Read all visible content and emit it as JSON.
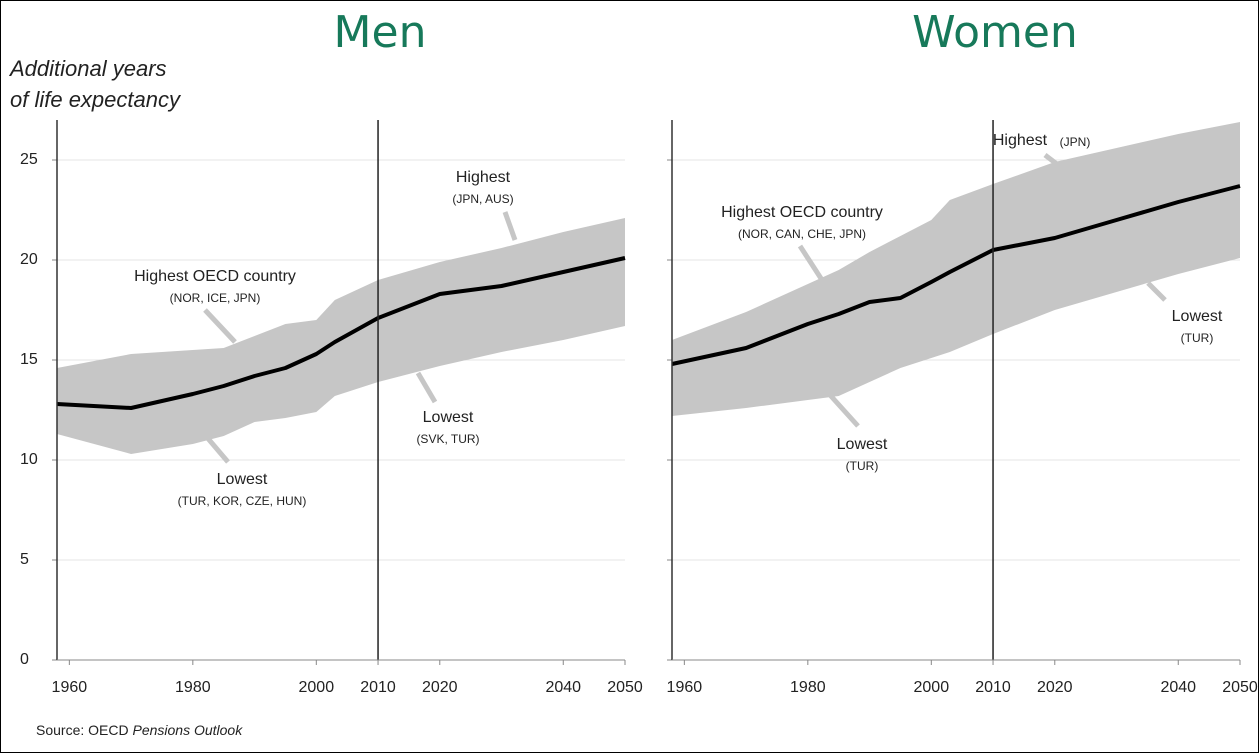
{
  "chart_data": [
    {
      "type": "band_line",
      "title": "Men",
      "y_label": [
        "Additional years",
        "of life expectancy"
      ],
      "x": [
        1958,
        1970,
        1980,
        1985,
        1990,
        1995,
        2000,
        2003,
        2010,
        2020,
        2030,
        2040,
        2050
      ],
      "mean": [
        12.8,
        12.6,
        13.3,
        13.7,
        14.2,
        14.6,
        15.3,
        15.9,
        17.1,
        18.3,
        18.7,
        19.4,
        20.1
      ],
      "high": [
        14.6,
        15.3,
        15.5,
        15.6,
        16.2,
        16.8,
        17.0,
        18.0,
        19.0,
        19.9,
        20.6,
        21.4,
        22.1
      ],
      "low": [
        11.3,
        10.3,
        10.8,
        11.2,
        11.9,
        12.1,
        12.4,
        13.2,
        13.9,
        14.7,
        15.4,
        16.0,
        16.7
      ],
      "band_color": "#c6c6c6",
      "line_color": "#000000",
      "marker_x": 2010,
      "xlim": [
        1958,
        2050
      ],
      "xticks": [
        1960,
        1980,
        2000,
        2010,
        2020,
        2040,
        2050
      ],
      "ylim": [
        0,
        27
      ],
      "yticks": [
        0,
        5,
        10,
        15,
        20,
        25
      ],
      "ytick_labels_shown": true,
      "grid": true,
      "annotations": [
        {
          "text": "Highest OECD country",
          "sub": "(NOR, ICE, JPN)"
        },
        {
          "text": "Highest",
          "sub": "(JPN, AUS)"
        },
        {
          "text": "Lowest",
          "sub": "(TUR, KOR, CZE, HUN)"
        },
        {
          "text": "Lowest",
          "sub": "(SVK, TUR)"
        }
      ]
    },
    {
      "type": "band_line",
      "title": "Women",
      "x": [
        1958,
        1970,
        1980,
        1985,
        1990,
        1995,
        2000,
        2003,
        2010,
        2020,
        2030,
        2040,
        2050
      ],
      "mean": [
        14.8,
        15.6,
        16.8,
        17.3,
        17.9,
        18.1,
        18.9,
        19.4,
        20.5,
        21.1,
        22.0,
        22.9,
        23.7
      ],
      "high": [
        16.0,
        17.4,
        18.8,
        19.5,
        20.4,
        21.2,
        22.0,
        23.0,
        23.8,
        24.9,
        25.6,
        26.3,
        26.9
      ],
      "low": [
        12.2,
        12.6,
        13.0,
        13.2,
        13.9,
        14.6,
        15.1,
        15.4,
        16.3,
        17.5,
        18.4,
        19.3,
        20.1
      ],
      "band_color": "#c6c6c6",
      "line_color": "#000000",
      "marker_x": 2010,
      "xlim": [
        1958,
        2050
      ],
      "xticks": [
        1960,
        1980,
        2000,
        2010,
        2020,
        2040,
        2050
      ],
      "ylim": [
        0,
        27
      ],
      "yticks": [
        0,
        5,
        10,
        15,
        20,
        25
      ],
      "ytick_labels_shown": false,
      "grid": true,
      "annotations": [
        {
          "text": "Highest",
          "sub": "(JPN)"
        },
        {
          "text": "Highest OECD country",
          "sub": "(NOR, CAN, CHE, JPN)"
        },
        {
          "text": "Lowest",
          "sub": "(TUR)"
        },
        {
          "text": "Lowest",
          "sub": "(TUR)"
        }
      ]
    }
  ],
  "source": {
    "prefix": "Source: OECD ",
    "italic": "Pensions Outlook"
  }
}
